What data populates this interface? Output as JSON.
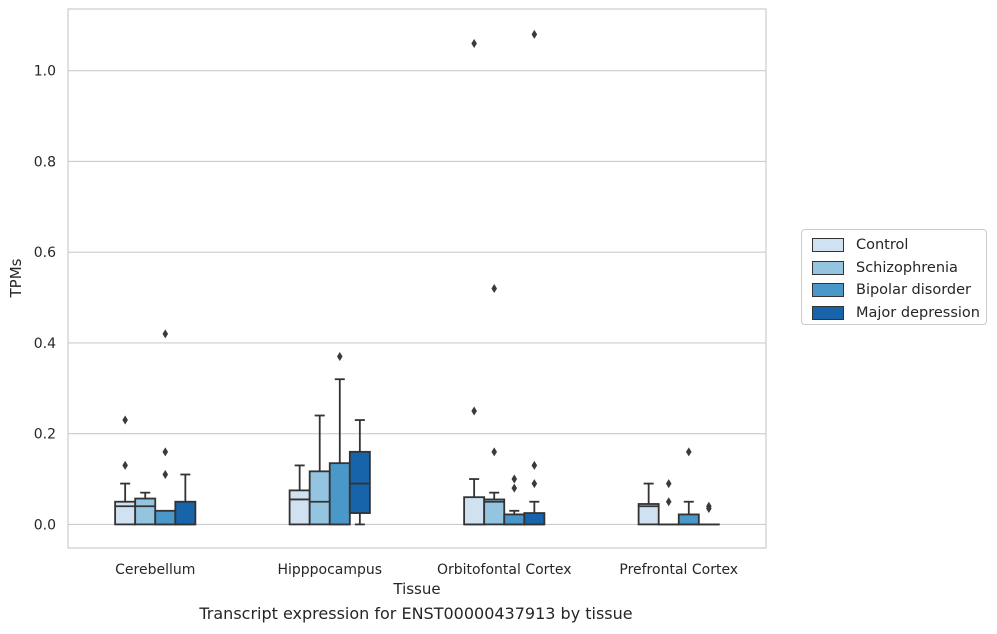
{
  "caption": "Transcript expression for ENST00000437913 by tissue",
  "chart_data": {
    "type": "box",
    "xlabel": "Tissue",
    "ylabel": "TPMs",
    "ylim": [
      -0.052,
      1.136
    ],
    "yticks": [
      0.0,
      0.2,
      0.4,
      0.6,
      0.8,
      1.0
    ],
    "ytick_labels": [
      "0.0",
      "0.2",
      "0.4",
      "0.6",
      "0.8",
      "1.0"
    ],
    "grid": "horizontal",
    "legend_position": "right",
    "categories": [
      "Cerebellum",
      "Hipppocampus",
      "Orbitofontal Cortex",
      "Prefrontal Cortex"
    ],
    "series": [
      {
        "name": "Control",
        "color": "#d0e1f2",
        "boxes": [
          {
            "whislo": 0.0,
            "q1": 0.0,
            "med": 0.04,
            "q3": 0.05,
            "whishi": 0.09,
            "fliers": [
              0.13,
              0.23
            ]
          },
          {
            "whislo": 0.0,
            "q1": 0.0,
            "med": 0.055,
            "q3": 0.075,
            "whishi": 0.13,
            "fliers": []
          },
          {
            "whislo": 0.0,
            "q1": 0.0,
            "med": 0.0,
            "q3": 0.06,
            "whishi": 0.1,
            "fliers": [
              0.25,
              1.06
            ]
          },
          {
            "whislo": 0.0,
            "q1": 0.0,
            "med": 0.04,
            "q3": 0.045,
            "whishi": 0.09,
            "fliers": []
          }
        ]
      },
      {
        "name": "Schizophrenia",
        "color": "#94c4df",
        "boxes": [
          {
            "whislo": 0.0,
            "q1": 0.0,
            "med": 0.04,
            "q3": 0.057,
            "whishi": 0.07,
            "fliers": []
          },
          {
            "whislo": 0.0,
            "q1": 0.0,
            "med": 0.05,
            "q3": 0.117,
            "whishi": 0.24,
            "fliers": []
          },
          {
            "whislo": 0.0,
            "q1": 0.0,
            "med": 0.05,
            "q3": 0.055,
            "whishi": 0.07,
            "fliers": [
              0.16,
              0.52
            ]
          },
          {
            "whislo": 0.0,
            "q1": 0.0,
            "med": 0.0,
            "q3": 0.0,
            "whishi": 0.0,
            "fliers": [
              0.05,
              0.09
            ]
          }
        ]
      },
      {
        "name": "Bipolar disorder",
        "color": "#4a98c9",
        "boxes": [
          {
            "whislo": 0.0,
            "q1": 0.0,
            "med": 0.0,
            "q3": 0.03,
            "whishi": 0.03,
            "fliers": [
              0.11,
              0.16,
              0.42
            ]
          },
          {
            "whislo": 0.0,
            "q1": 0.0,
            "med": 0.0,
            "q3": 0.135,
            "whishi": 0.32,
            "fliers": [
              0.37
            ]
          },
          {
            "whislo": 0.0,
            "q1": 0.0,
            "med": 0.0,
            "q3": 0.022,
            "whishi": 0.03,
            "fliers": [
              0.08,
              0.1
            ]
          },
          {
            "whislo": 0.0,
            "q1": 0.0,
            "med": 0.0,
            "q3": 0.022,
            "whishi": 0.05,
            "fliers": [
              0.16
            ]
          }
        ]
      },
      {
        "name": "Major depression",
        "color": "#1764ab",
        "boxes": [
          {
            "whislo": 0.0,
            "q1": 0.0,
            "med": 0.0,
            "q3": 0.05,
            "whishi": 0.11,
            "fliers": []
          },
          {
            "whislo": 0.0,
            "q1": 0.025,
            "med": 0.09,
            "q3": 0.16,
            "whishi": 0.23,
            "fliers": []
          },
          {
            "whislo": 0.0,
            "q1": 0.0,
            "med": 0.0,
            "q3": 0.025,
            "whishi": 0.05,
            "fliers": [
              0.09,
              0.13,
              1.08
            ]
          },
          {
            "whislo": 0.0,
            "q1": 0.0,
            "med": 0.0,
            "q3": 0.0,
            "whishi": 0.0,
            "fliers": [
              0.035,
              0.04
            ]
          }
        ]
      }
    ]
  }
}
